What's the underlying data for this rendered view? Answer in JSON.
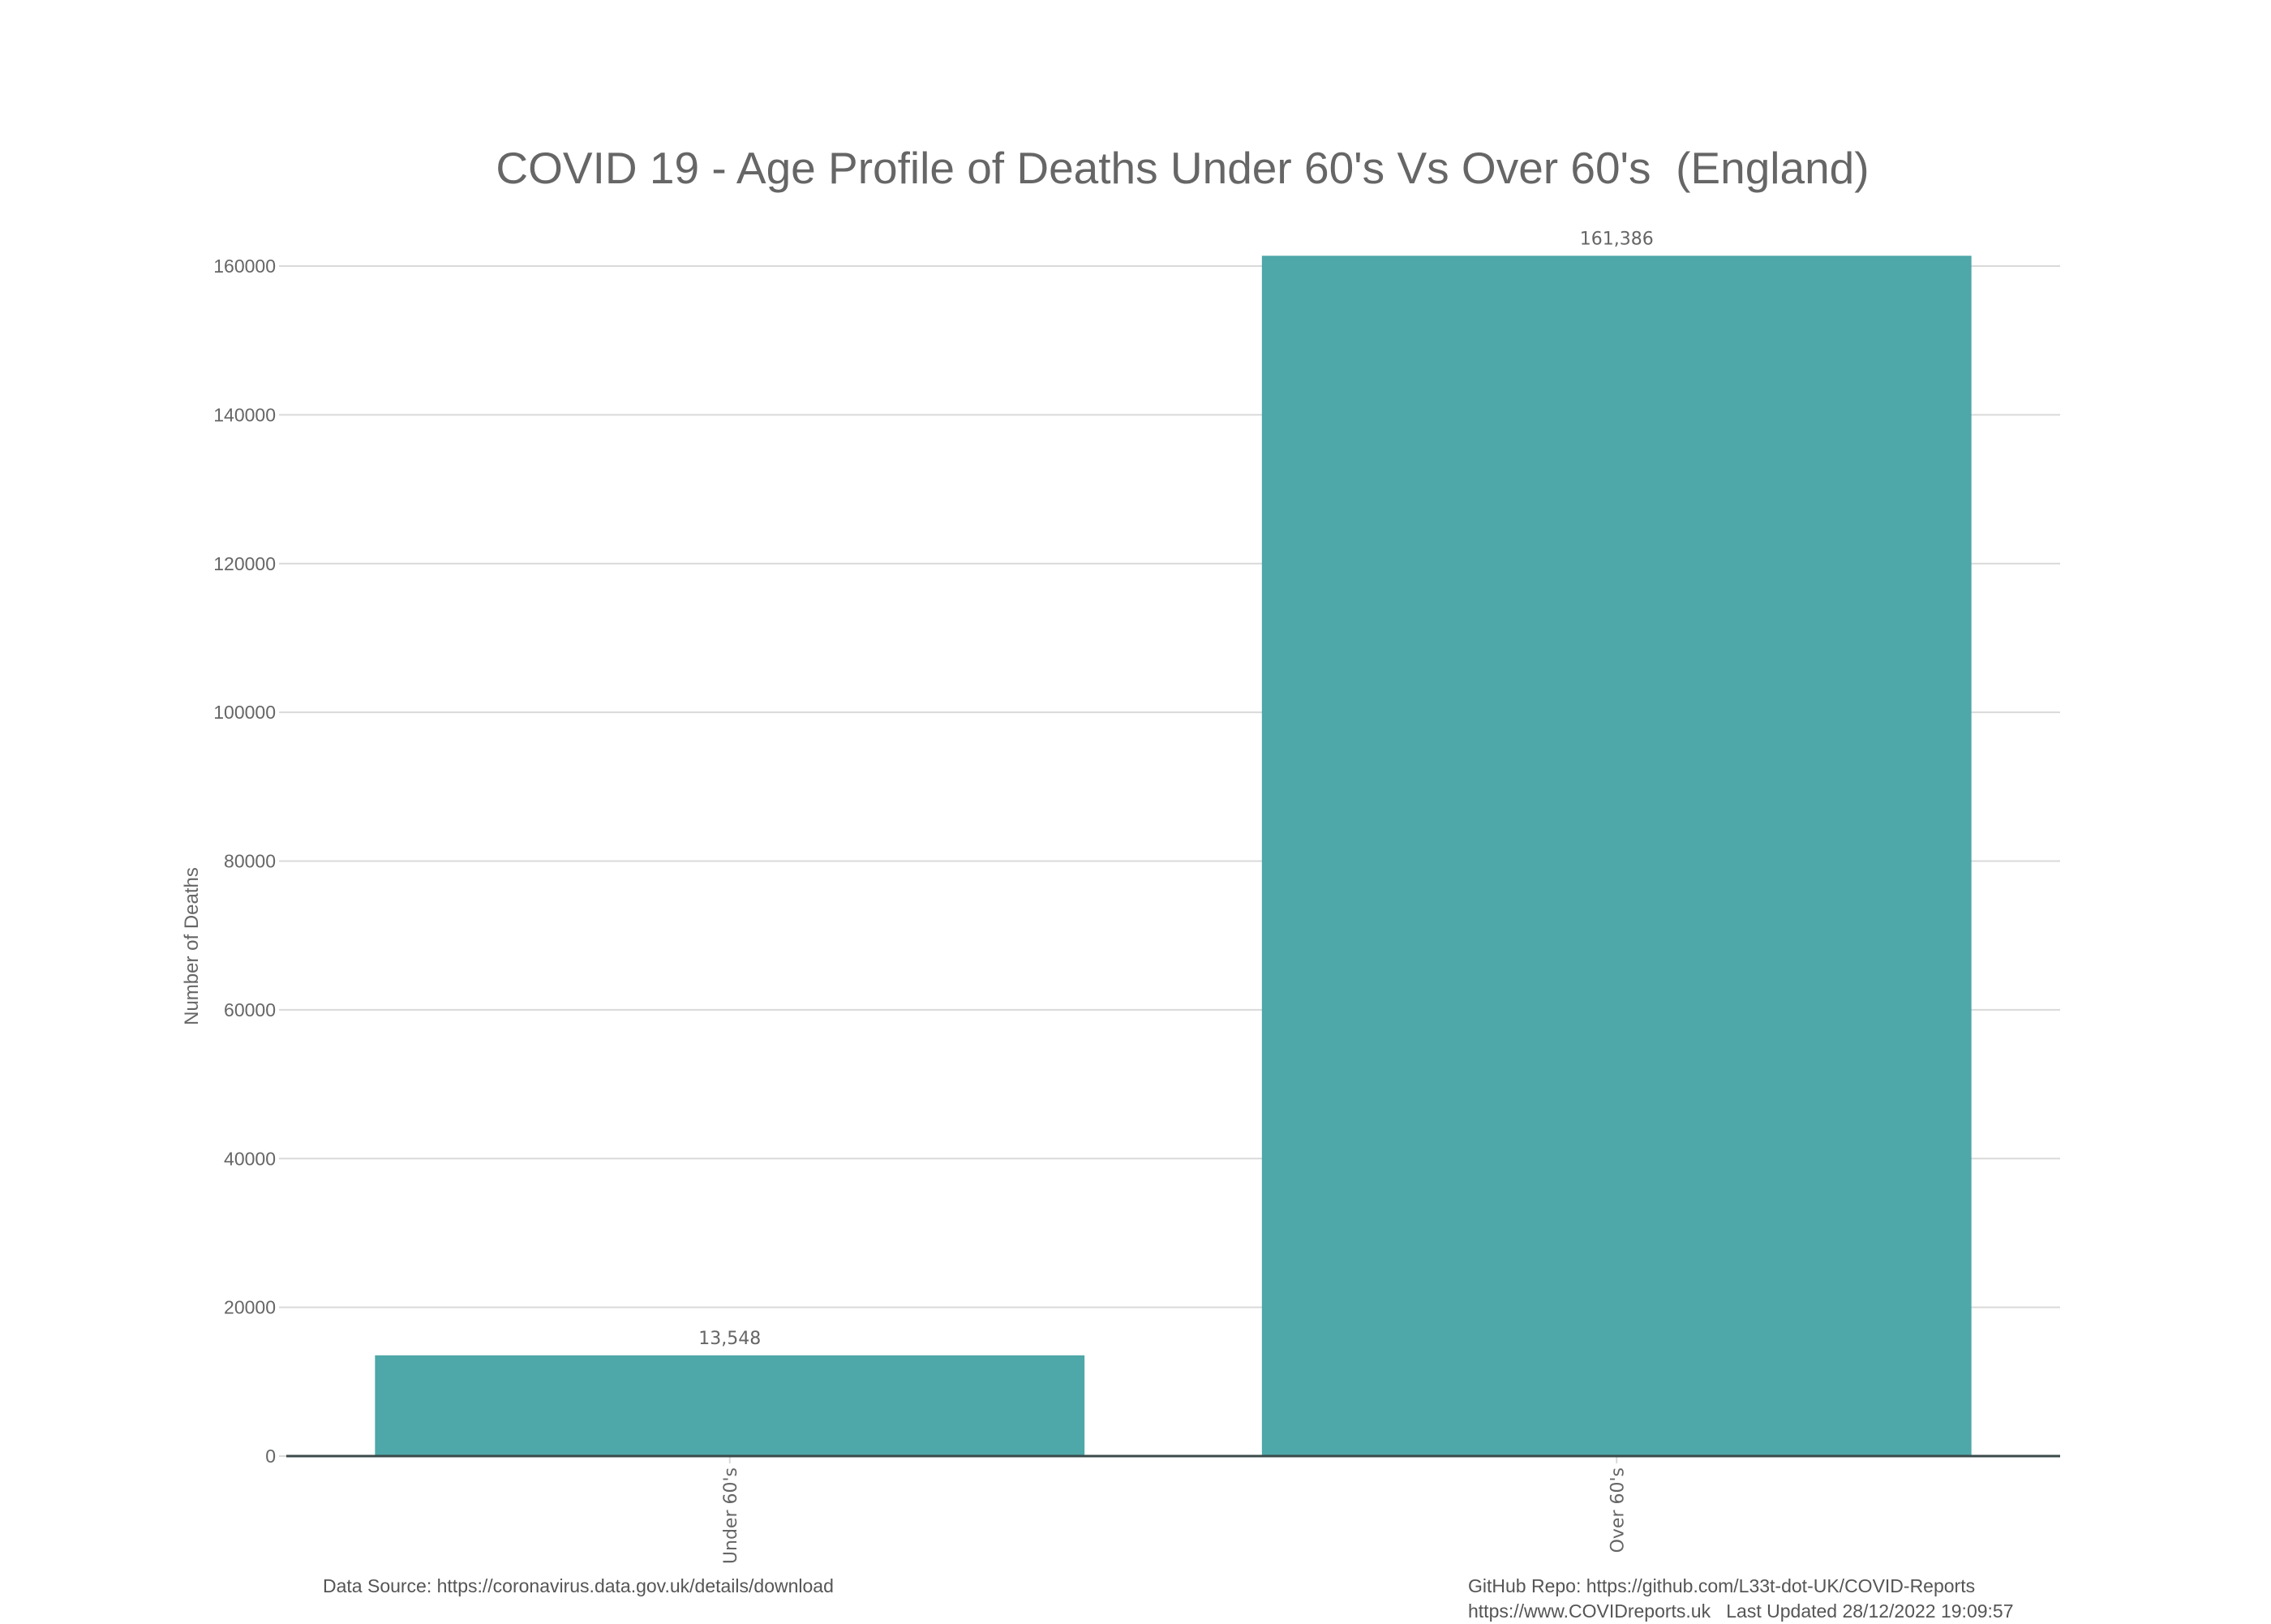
{
  "chart_data": {
    "type": "bar",
    "title": "COVID 19 - Age Profile of Deaths Under 60's Vs Over 60's  (England)",
    "xlabel": "",
    "ylabel": "Number of Deaths",
    "categories": [
      "Under 60's",
      "Over 60's"
    ],
    "values": [
      13548,
      161386
    ],
    "data_labels": [
      "13,548",
      "161,386"
    ],
    "ylim": [
      0,
      160000
    ],
    "yticks": [
      0,
      20000,
      40000,
      60000,
      80000,
      100000,
      120000,
      140000,
      160000
    ],
    "ytick_labels": [
      "0",
      "20000",
      "40000",
      "60000",
      "80000",
      "100000",
      "120000",
      "140000",
      "160000"
    ],
    "grid": true,
    "legend": "none",
    "colors": {
      "bar": "#4aa5a6",
      "grid": "#d9d9d9",
      "axis": "#3a4a4a",
      "text": "#666666"
    }
  },
  "footer": {
    "data_source": "Data Source: https://coronavirus.data.gov.uk/details/download",
    "github": "GitHub Repo: https://github.com/L33t-dot-UK/COVID-Reports",
    "website_updated": "https://www.COVIDreports.uk   Last Updated 28/12/2022 19:09:57"
  }
}
